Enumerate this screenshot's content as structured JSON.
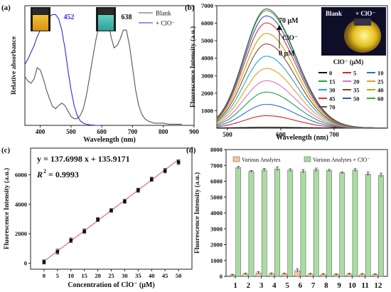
{
  "chart_data": [
    {
      "panel": "(a)",
      "type": "line",
      "xlabel": "Wavelength (nm)",
      "ylabel": "Relative absorbance",
      "xlim": [
        350,
        900
      ],
      "xticks": [
        "400",
        "500",
        "600",
        "700",
        "800",
        "900"
      ],
      "legend": [
        "Blank",
        "+ ClO⁻"
      ],
      "annotations": [
        "452",
        "638"
      ],
      "series": [
        {
          "name": "Blank",
          "color": "#555555",
          "x": [
            350,
            360,
            370,
            380,
            390,
            400,
            410,
            420,
            430,
            440,
            450,
            460,
            470,
            480,
            490,
            500,
            510,
            520,
            530,
            540,
            550,
            560,
            570,
            580,
            590,
            600,
            610,
            620,
            630,
            640,
            650,
            660,
            670,
            680,
            690,
            700,
            710,
            720,
            730,
            740,
            750,
            760,
            770,
            780,
            790,
            800,
            820,
            840,
            860
          ],
          "y": [
            0.44,
            0.4,
            0.38,
            0.42,
            0.52,
            0.5,
            0.42,
            0.32,
            0.24,
            0.17,
            0.15,
            0.18,
            0.2,
            0.18,
            0.13,
            0.08,
            0.06,
            0.06,
            0.09,
            0.15,
            0.27,
            0.43,
            0.6,
            0.76,
            0.89,
            0.97,
            1.0,
            0.96,
            0.8,
            0.7,
            0.72,
            0.78,
            0.86,
            0.86,
            0.72,
            0.52,
            0.32,
            0.18,
            0.1,
            0.06,
            0.04,
            0.03,
            0.02,
            0.02,
            0.02,
            0.02,
            0.01,
            0.01,
            0.01
          ]
        },
        {
          "name": "+ ClO⁻",
          "color": "#2b2bd6",
          "x": [
            350,
            360,
            370,
            380,
            390,
            400,
            410,
            420,
            430,
            440,
            450,
            460,
            470,
            480,
            490,
            500,
            510,
            520,
            530,
            540,
            550,
            560,
            580,
            600
          ],
          "y": [
            0.55,
            0.6,
            0.66,
            0.72,
            0.8,
            0.86,
            0.91,
            0.95,
            0.98,
            1.0,
            1.0,
            0.96,
            0.86,
            0.7,
            0.5,
            0.32,
            0.18,
            0.09,
            0.04,
            0.02,
            0.01,
            0.005,
            0.0,
            0.0
          ]
        }
      ]
    },
    {
      "panel": "(b)",
      "type": "line",
      "xlabel": "Wavelength (nm)",
      "ylabel": "Fluorescence Intensity (a.u.)",
      "xlim": [
        480,
        800
      ],
      "ylim": [
        0,
        7000
      ],
      "xticks": [
        "500",
        "600",
        "700"
      ],
      "yticks": [
        "1000",
        "2000",
        "3000",
        "4000",
        "5000",
        "6000",
        "7000"
      ],
      "legend_title": "ClO⁻ (μM)",
      "peak_nm": 573,
      "top_label": "70 μM",
      "bottom_label": "0 μM",
      "arrow_label": "ClO⁻",
      "photo_labels": [
        "Blank",
        "+ ClO⁻"
      ],
      "series": [
        {
          "name": "0",
          "color": "#111111",
          "peak": 40
        },
        {
          "name": "5",
          "color": "#e02020",
          "peak": 700
        },
        {
          "name": "10",
          "color": "#2f6fd0",
          "peak": 1350
        },
        {
          "name": "15",
          "color": "#1ea050",
          "peak": 2050
        },
        {
          "name": "20",
          "color": "#e070c8",
          "peak": 2700
        },
        {
          "name": "25",
          "color": "#e8a020",
          "peak": 3400
        },
        {
          "name": "30",
          "color": "#20a8c8",
          "peak": 4100
        },
        {
          "name": "35",
          "color": "#8a4a30",
          "peak": 4800
        },
        {
          "name": "40",
          "color": "#b8a800",
          "peak": 5400
        },
        {
          "name": "45",
          "color": "#e03030",
          "peak": 6000
        },
        {
          "name": "50",
          "color": "#3050d0",
          "peak": 6400
        },
        {
          "name": "60",
          "color": "#30b030",
          "peak": 6700
        },
        {
          "name": "70",
          "color": "#555555",
          "peak": 6800
        }
      ]
    },
    {
      "panel": "(c)",
      "type": "scatter",
      "xlabel": "Concentration of ClO⁻ (μM)",
      "ylabel": "Fluorescence Intensity (a.u.)",
      "xlim": [
        -5,
        55
      ],
      "ylim": [
        -400,
        7800
      ],
      "xticks": [
        "0",
        "5",
        "10",
        "15",
        "20",
        "25",
        "30",
        "35",
        "40",
        "45",
        "50"
      ],
      "yticks": [
        "0",
        "2000",
        "4000",
        "6000"
      ],
      "equation": "y = 137.6998 x + 135.9171",
      "r2_label": "R",
      "r2_value": "= 0.9993",
      "fit": {
        "slope": 137.6998,
        "intercept": 135.9171
      },
      "x": [
        0,
        5,
        10,
        15,
        20,
        25,
        30,
        35,
        40,
        45,
        50
      ],
      "y": [
        90,
        790,
        1560,
        2170,
        2960,
        3580,
        4200,
        4950,
        5690,
        6270,
        6850
      ],
      "err": [
        140,
        170,
        160,
        150,
        130,
        120,
        130,
        140,
        140,
        150,
        160
      ]
    },
    {
      "panel": "(d)",
      "type": "bar",
      "xlabel": "",
      "ylabel": "Fluorescence Intensity (a.u.)",
      "ylim": [
        0,
        8000
      ],
      "yticks": [
        "0",
        "1000",
        "2000",
        "3000",
        "4000",
        "5000",
        "6000",
        "7000",
        "8000"
      ],
      "categories": [
        "1",
        "2",
        "3",
        "4",
        "5",
        "6",
        "7",
        "8",
        "9",
        "10",
        "11",
        "12"
      ],
      "series": [
        {
          "name": "Various Analytes",
          "color": "#f6c79e",
          "values": [
            90,
            150,
            220,
            160,
            150,
            360,
            140,
            130,
            120,
            140,
            130,
            120
          ],
          "err": [
            40,
            50,
            80,
            60,
            50,
            110,
            50,
            50,
            40,
            50,
            50,
            40
          ]
        },
        {
          "name": "Various Analytes + ClO⁻",
          "color": "#a9dba2",
          "values": [
            6860,
            6620,
            6710,
            6780,
            6700,
            6620,
            6720,
            6680,
            6530,
            6700,
            6460,
            6380
          ],
          "err": [
            80,
            60,
            100,
            130,
            90,
            120,
            110,
            70,
            60,
            90,
            120,
            130
          ]
        }
      ]
    }
  ]
}
